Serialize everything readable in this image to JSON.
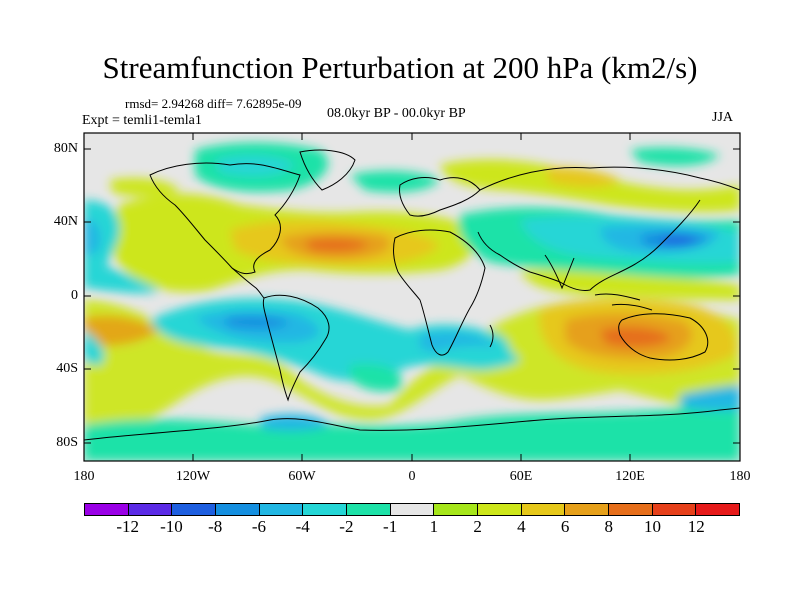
{
  "title": "Streamfunction Perturbation at 200 hPa (km2/s)",
  "stats_line": "rmsd= 2.94268  diff= 7.62895e-09",
  "experiment": "Expt = temli1-temla1",
  "period": "08.0kyr BP - 00.0kyr BP",
  "season": "JJA",
  "y_ticks": [
    "80N",
    "40N",
    "0",
    "40S",
    "80S"
  ],
  "x_ticks": [
    "180",
    "120W",
    "60W",
    "0",
    "60E",
    "120E",
    "180"
  ],
  "colorbar": {
    "labels": [
      "-12",
      "-10",
      "-8",
      "-6",
      "-4",
      "-2",
      "-1",
      "1",
      "2",
      "4",
      "6",
      "8",
      "10",
      "12"
    ],
    "colors": [
      "#9a00e6",
      "#5b2ae6",
      "#1e5fe0",
      "#148fe0",
      "#22b7e3",
      "#25d6d6",
      "#1de2a8",
      "#e6e6e6",
      "#a6e61a",
      "#cde61a",
      "#e6c81a",
      "#e6a01a",
      "#e66e1a",
      "#e6401a",
      "#e61a1a"
    ]
  }
}
